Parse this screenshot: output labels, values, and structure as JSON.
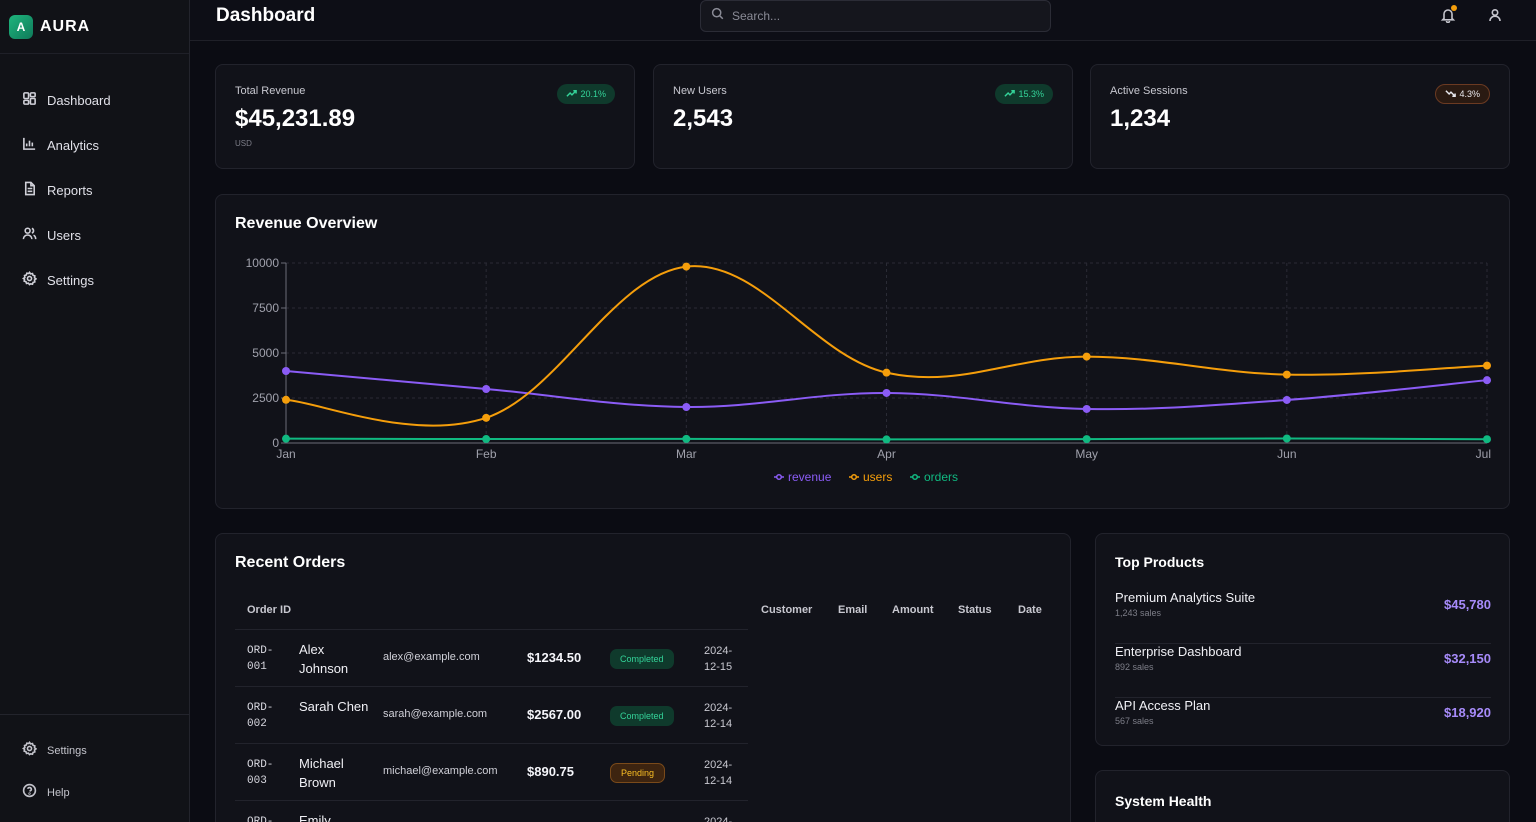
{
  "brand": {
    "logo_letter": "A",
    "name": "AURA"
  },
  "sidebar": {
    "items": [
      {
        "label": "Dashboard",
        "icon": "grid-icon"
      },
      {
        "label": "Analytics",
        "icon": "bar-chart-icon"
      },
      {
        "label": "Reports",
        "icon": "document-icon"
      },
      {
        "label": "Users",
        "icon": "users-icon"
      },
      {
        "label": "Settings",
        "icon": "gear-icon"
      }
    ],
    "bottom": [
      {
        "label": "Settings",
        "icon": "gear-icon"
      },
      {
        "label": "Help",
        "icon": "help-circle-icon"
      }
    ]
  },
  "header": {
    "title": "Dashboard",
    "search_placeholder": "Search..."
  },
  "stats": [
    {
      "label": "Total Revenue",
      "value": "$45,231.89",
      "sub": "USD",
      "change": "20.1%",
      "trend": "up"
    },
    {
      "label": "New Users",
      "value": "2,543",
      "change": "15.3%",
      "trend": "up"
    },
    {
      "label": "Active Sessions",
      "value": "1,234",
      "change": "4.3%",
      "trend": "down"
    }
  ],
  "revenue_overview": {
    "title": "Revenue Overview"
  },
  "chart_data": {
    "type": "line",
    "x": [
      "Jan",
      "Feb",
      "Mar",
      "Apr",
      "May",
      "Jun",
      "Jul"
    ],
    "series": [
      {
        "name": "revenue",
        "color": "#8b5cf6",
        "values": [
          4000,
          3000,
          2000,
          2780,
          1890,
          2390,
          3490
        ]
      },
      {
        "name": "users",
        "color": "#f59e0b",
        "values": [
          2400,
          1398,
          9800,
          3908,
          4800,
          3800,
          4300
        ]
      },
      {
        "name": "orders",
        "color": "#10b981",
        "values": [
          240,
          221,
          229,
          200,
          218,
          250,
          210
        ]
      }
    ],
    "yticks": [
      0,
      2500,
      5000,
      7500,
      10000
    ],
    "ylim": [
      0,
      10000
    ],
    "grid": true,
    "legend": "bottom-center"
  },
  "recent_orders": {
    "title": "Recent Orders",
    "columns": [
      "Order ID",
      "Customer",
      "Email",
      "Amount",
      "Status",
      "Date"
    ],
    "rows": [
      {
        "id": "ORD-001",
        "customer": "Alex Johnson",
        "email": "alex@example.com",
        "amount": "$1234.50",
        "status": "Completed",
        "date": "2024-12-15"
      },
      {
        "id": "ORD-002",
        "customer": "Sarah Chen",
        "email": "sarah@example.com",
        "amount": "$2567.00",
        "status": "Completed",
        "date": "2024-12-14"
      },
      {
        "id": "ORD-003",
        "customer": "Michael Brown",
        "email": "michael@example.com",
        "amount": "$890.75",
        "status": "Pending",
        "date": "2024-12-14"
      },
      {
        "id": "ORD-",
        "customer": "Emily",
        "email": "",
        "amount": "",
        "status": "",
        "date": "2024-"
      }
    ]
  },
  "top_products": {
    "title": "Top Products",
    "items": [
      {
        "name": "Premium Analytics Suite",
        "sales": "1,243 sales",
        "value": "$45,780"
      },
      {
        "name": "Enterprise Dashboard",
        "sales": "892 sales",
        "value": "$32,150"
      },
      {
        "name": "API Access Plan",
        "sales": "567 sales",
        "value": "$18,920"
      }
    ]
  },
  "system_health": {
    "title": "System Health"
  }
}
